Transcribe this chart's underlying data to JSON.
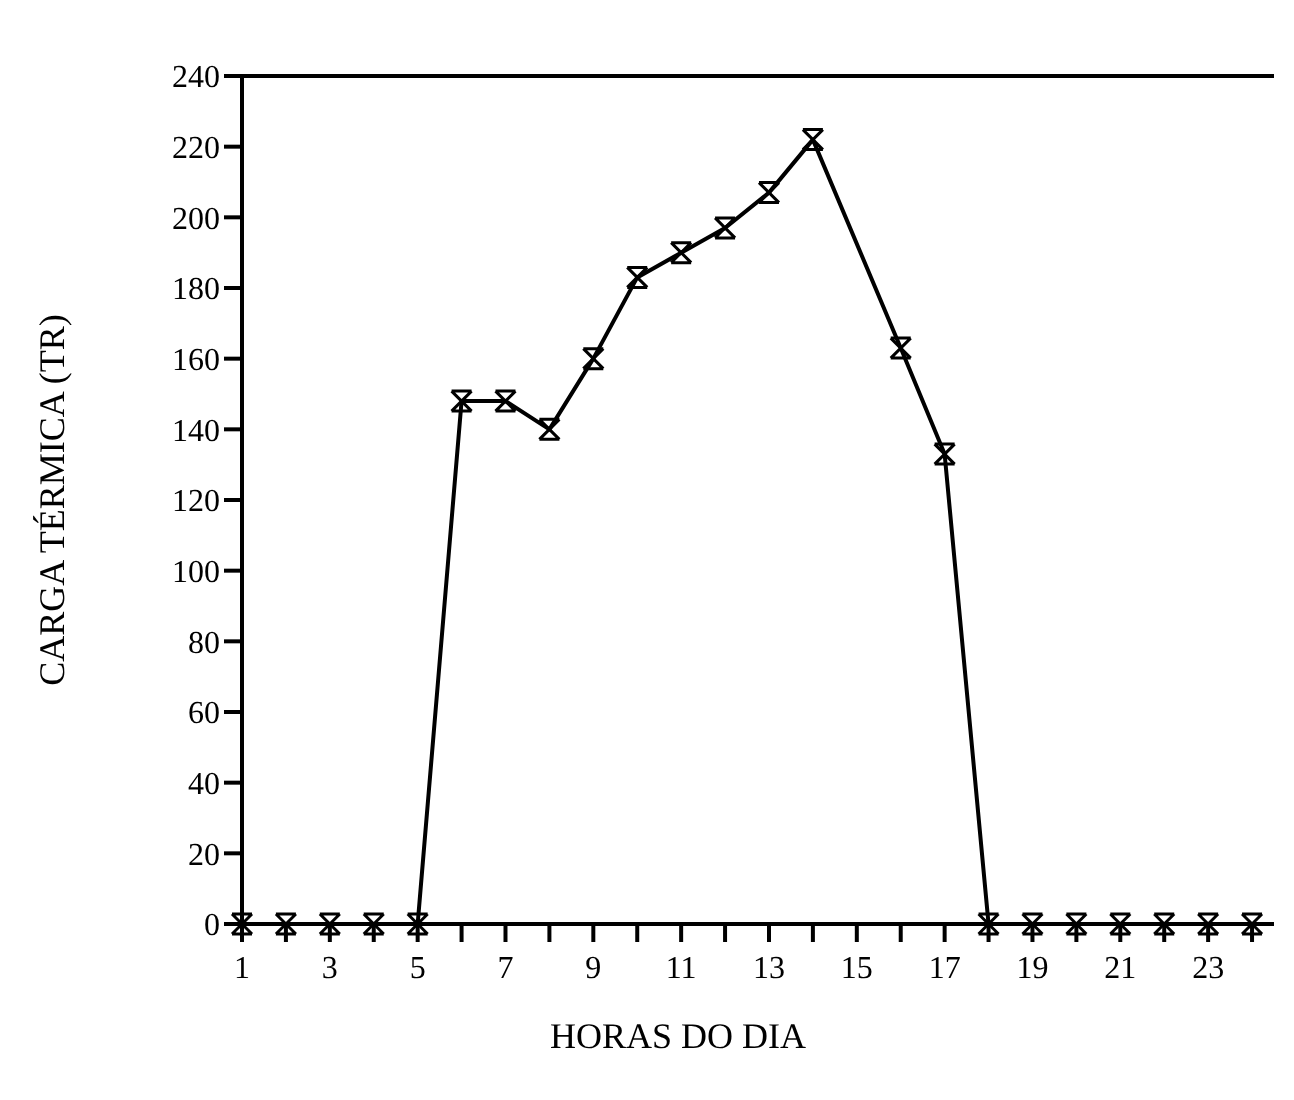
{
  "chart_data": {
    "type": "line",
    "xlabel": "HORAS DO DIA",
    "ylabel": "CARGA TÉRMICA (TR)",
    "marker": "cross",
    "grid": false,
    "color": "#000000",
    "x": [
      1,
      2,
      3,
      4,
      5,
      6,
      7,
      8,
      9,
      10,
      11,
      12,
      13,
      14,
      16,
      17,
      18,
      19,
      20,
      21,
      22,
      23,
      24
    ],
    "values": [
      0,
      0,
      0,
      0,
      0,
      148,
      148,
      140,
      160,
      183,
      190,
      197,
      207,
      222,
      163,
      133,
      0,
      0,
      0,
      0,
      0,
      0,
      0
    ],
    "xlim": [
      1,
      24.5
    ],
    "ylim": [
      0,
      240
    ],
    "xticks": [
      1,
      {
        "value": 2,
        "label": null
      },
      3,
      {
        "value": 4,
        "label": null
      },
      5,
      {
        "value": 6,
        "label": null
      },
      7,
      {
        "value": 8,
        "label": null
      },
      9,
      {
        "value": 10,
        "label": null
      },
      11,
      {
        "value": 12,
        "label": null
      },
      13,
      {
        "value": 14,
        "label": null
      },
      15,
      {
        "value": 16,
        "label": null
      },
      17,
      {
        "value": 18,
        "label": null
      },
      19,
      {
        "value": 20,
        "label": null
      },
      21,
      {
        "value": 22,
        "label": null
      },
      23,
      {
        "value": 24,
        "label": null
      }
    ],
    "yticks": [
      0,
      20,
      40,
      60,
      80,
      100,
      120,
      140,
      160,
      180,
      200,
      220,
      240
    ]
  }
}
